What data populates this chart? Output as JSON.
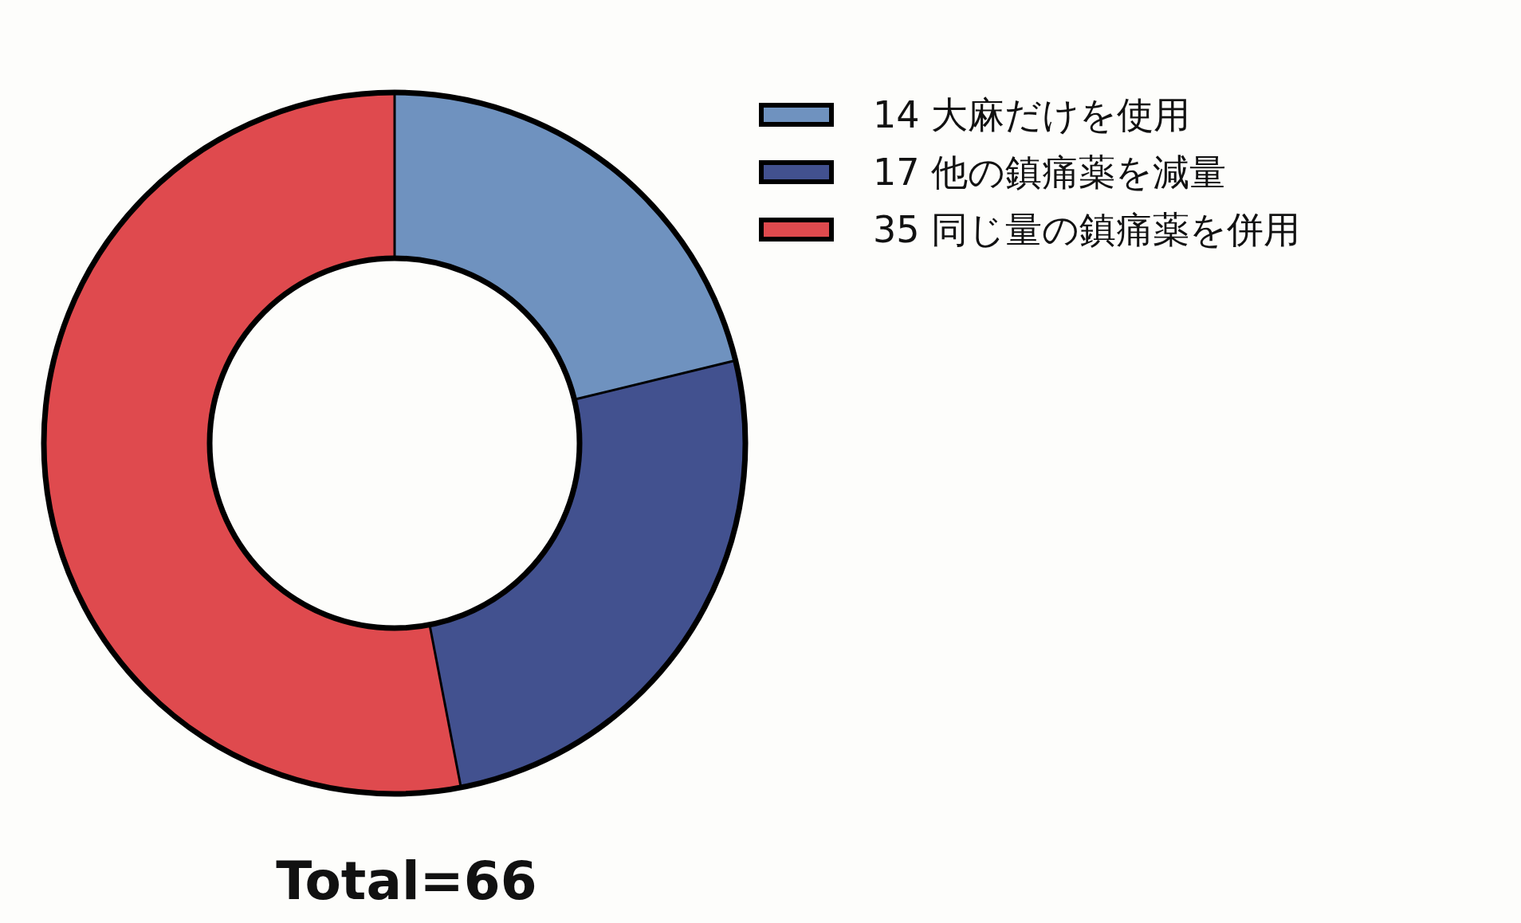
{
  "chart_data": {
    "type": "donut",
    "categories": [
      "大麻だけを使用",
      "他の鎮痛薬を減量",
      "同じ量の鎮痛薬を併用"
    ],
    "values": [
      14,
      17,
      35
    ],
    "value_labels": [
      "14",
      "17",
      "35"
    ],
    "colors": [
      "#6f92bf",
      "#42518f",
      "#df4a4e"
    ],
    "legend": "top right",
    "annotations": [
      "Total=66"
    ]
  }
}
